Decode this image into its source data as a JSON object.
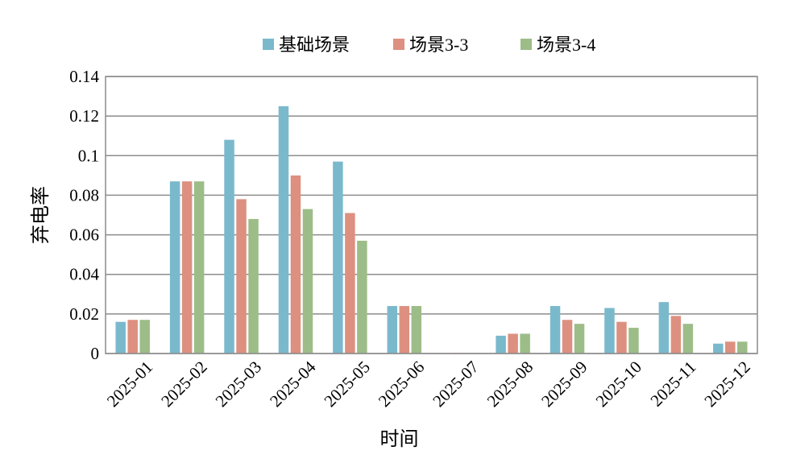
{
  "chart_data": {
    "type": "bar",
    "title": "",
    "xlabel": "时间",
    "ylabel": "弃电率",
    "ylim": [
      0,
      0.14
    ],
    "yticks": [
      "0",
      "0.02",
      "0.04",
      "0.06",
      "0.08",
      "0.1",
      "0.12",
      "0.14"
    ],
    "grid": true,
    "legend_position": "top-center",
    "categories": [
      "2025-01",
      "2025-02",
      "2025-03",
      "2025-04",
      "2025-05",
      "2025-06",
      "2025-07",
      "2025-08",
      "2025-09",
      "2025-10",
      "2025-11",
      "2025-12"
    ],
    "series": [
      {
        "name": "基础场景",
        "color": "#7ab9cc",
        "values": [
          0.016,
          0.087,
          0.108,
          0.125,
          0.097,
          0.024,
          0.0,
          0.009,
          0.024,
          0.023,
          0.026,
          0.005
        ]
      },
      {
        "name": "场景3-3",
        "color": "#dd9080",
        "values": [
          0.017,
          0.087,
          0.078,
          0.09,
          0.071,
          0.024,
          0.0003,
          0.01,
          0.017,
          0.016,
          0.019,
          0.006
        ]
      },
      {
        "name": "场景3-4",
        "color": "#9dbd88",
        "values": [
          0.017,
          0.087,
          0.068,
          0.073,
          0.057,
          0.024,
          0.0003,
          0.01,
          0.015,
          0.013,
          0.015,
          0.006
        ]
      }
    ]
  }
}
